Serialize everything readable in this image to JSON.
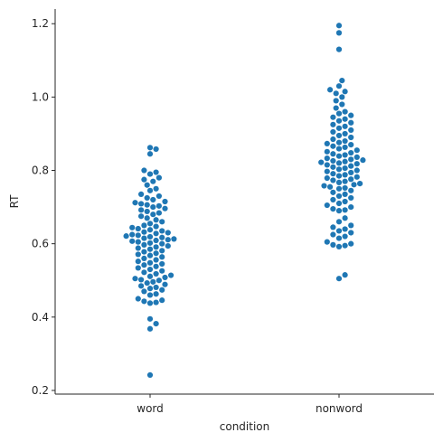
{
  "chart_data": {
    "type": "scatter",
    "subtype": "swarm",
    "title": "",
    "xlabel": "condition",
    "ylabel": "RT",
    "categories": [
      "word",
      "nonword"
    ],
    "ylim": [
      0.19,
      1.24
    ],
    "yticks": [
      0.2,
      0.4,
      0.6,
      0.8,
      1.0,
      1.2
    ],
    "ytick_labels": [
      "0.2",
      "0.4",
      "0.6",
      "0.8",
      "1.0",
      "1.2"
    ],
    "grid": false,
    "legend": "none",
    "color": "#1f77b4",
    "axis_color": "#262626",
    "series": [
      {
        "category": "word",
        "values": [
          0.242,
          0.368,
          0.382,
          0.395,
          0.438,
          0.44,
          0.443,
          0.446,
          0.45,
          0.46,
          0.463,
          0.47,
          0.474,
          0.478,
          0.481,
          0.485,
          0.489,
          0.493,
          0.496,
          0.5,
          0.502,
          0.505,
          0.508,
          0.511,
          0.514,
          0.518,
          0.522,
          0.526,
          0.53,
          0.534,
          0.538,
          0.542,
          0.545,
          0.548,
          0.552,
          0.556,
          0.56,
          0.564,
          0.568,
          0.571,
          0.574,
          0.578,
          0.581,
          0.585,
          0.588,
          0.591,
          0.594,
          0.597,
          0.6,
          0.602,
          0.605,
          0.607,
          0.609,
          0.611,
          0.613,
          0.615,
          0.617,
          0.619,
          0.621,
          0.623,
          0.625,
          0.628,
          0.63,
          0.632,
          0.635,
          0.638,
          0.641,
          0.644,
          0.647,
          0.65,
          0.655,
          0.66,
          0.665,
          0.67,
          0.675,
          0.68,
          0.684,
          0.688,
          0.692,
          0.696,
          0.7,
          0.703,
          0.706,
          0.709,
          0.712,
          0.715,
          0.72,
          0.725,
          0.73,
          0.735,
          0.745,
          0.75,
          0.76,
          0.77,
          0.775,
          0.78,
          0.79,
          0.795,
          0.8,
          0.845,
          0.858,
          0.862
        ]
      },
      {
        "category": "nonword",
        "values": [
          0.505,
          0.515,
          0.592,
          0.595,
          0.597,
          0.6,
          0.605,
          0.615,
          0.62,
          0.625,
          0.63,
          0.635,
          0.64,
          0.645,
          0.65,
          0.66,
          0.67,
          0.69,
          0.692,
          0.695,
          0.7,
          0.705,
          0.71,
          0.715,
          0.72,
          0.725,
          0.73,
          0.735,
          0.74,
          0.745,
          0.75,
          0.752,
          0.755,
          0.758,
          0.761,
          0.764,
          0.767,
          0.77,
          0.773,
          0.776,
          0.779,
          0.782,
          0.785,
          0.788,
          0.791,
          0.794,
          0.797,
          0.8,
          0.803,
          0.806,
          0.809,
          0.812,
          0.815,
          0.818,
          0.82,
          0.822,
          0.824,
          0.826,
          0.828,
          0.83,
          0.833,
          0.836,
          0.839,
          0.842,
          0.845,
          0.848,
          0.851,
          0.855,
          0.859,
          0.863,
          0.866,
          0.87,
          0.873,
          0.876,
          0.88,
          0.885,
          0.89,
          0.895,
          0.9,
          0.905,
          0.91,
          0.915,
          0.92,
          0.925,
          0.93,
          0.935,
          0.94,
          0.945,
          0.95,
          0.955,
          0.96,
          0.97,
          0.98,
          0.99,
          1.0,
          1.01,
          1.015,
          1.02,
          1.03,
          1.045,
          1.13,
          1.175,
          1.195
        ]
      }
    ]
  }
}
